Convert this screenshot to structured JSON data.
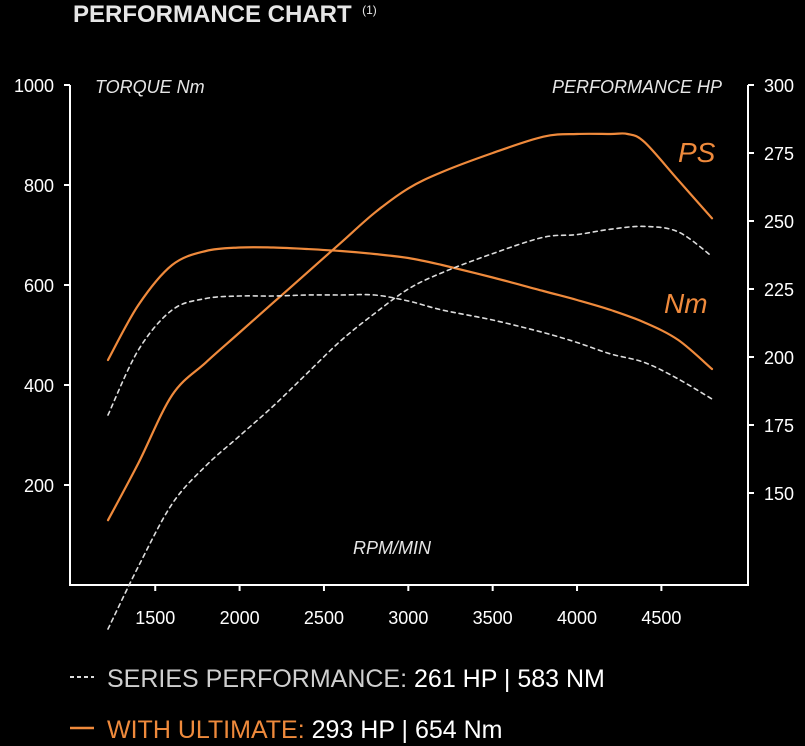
{
  "header": {
    "title": "PERFORMANCE CHART",
    "footnote": "(1)"
  },
  "colors": {
    "accent": "#ef8a3c",
    "series": "#dddddd",
    "background": "#000000",
    "axis": "#ffffff",
    "legend_label_series": "#cfcfcf"
  },
  "chart_data": {
    "type": "line",
    "xlabel": "RPM/MIN",
    "ylabel_left": "TORQUE Nm",
    "ylabel_right": "PERFORMANCE HP",
    "xlim": [
      1000,
      5000
    ],
    "ylim_left": [
      0,
      1000
    ],
    "ylim_right": [
      100,
      300
    ],
    "x_ticks": [
      1500,
      2000,
      2500,
      3000,
      3500,
      4000,
      4500
    ],
    "y_ticks_left": [
      200,
      400,
      600,
      800,
      1000
    ],
    "y_ticks_right": [
      150,
      175,
      200,
      225,
      250,
      275,
      300
    ],
    "grid": false,
    "tags": {
      "ps": "PS",
      "nm": "Nm"
    },
    "series": [
      {
        "axis": "right",
        "style": "solid",
        "tag": "ps",
        "x": [
          1220,
          1400,
          1600,
          1800,
          2000,
          2200,
          2400,
          2600,
          2800,
          3000,
          3200,
          3500,
          3800,
          4000,
          4200,
          4300,
          4400,
          4600,
          4800
        ],
        "y": [
          140,
          161,
          186,
          198,
          209,
          220,
          231,
          242,
          253,
          262,
          268,
          275,
          281,
          282,
          282,
          282,
          279,
          265,
          251
        ]
      },
      {
        "axis": "left",
        "style": "solid",
        "tag": "nm",
        "x": [
          1220,
          1400,
          1600,
          1800,
          2000,
          2200,
          2400,
          2600,
          2800,
          3000,
          3200,
          3500,
          3800,
          4000,
          4200,
          4400,
          4600,
          4800
        ],
        "y": [
          450,
          560,
          640,
          668,
          675,
          675,
          672,
          668,
          662,
          654,
          640,
          615,
          588,
          570,
          550,
          525,
          490,
          432
        ]
      },
      {
        "axis": "right",
        "style": "dashed",
        "x": [
          1220,
          1400,
          1600,
          1800,
          2000,
          2200,
          2400,
          2600,
          2800,
          3000,
          3200,
          3500,
          3800,
          4000,
          4200,
          4400,
          4600,
          4800
        ],
        "y": [
          100,
          123,
          146,
          160,
          171,
          182,
          194,
          206,
          216,
          225,
          231,
          238,
          244,
          245,
          247,
          248,
          246,
          237
        ]
      },
      {
        "axis": "left",
        "style": "dashed",
        "x": [
          1220,
          1400,
          1600,
          1800,
          2000,
          2200,
          2400,
          2600,
          2800,
          3000,
          3200,
          3500,
          3800,
          4000,
          4200,
          4400,
          4600,
          4800
        ],
        "y": [
          340,
          470,
          550,
          573,
          578,
          578,
          580,
          580,
          580,
          568,
          550,
          530,
          505,
          485,
          462,
          445,
          412,
          372
        ]
      }
    ]
  },
  "legend": {
    "series_label": "SERIES PERFORMANCE:",
    "series_values": " 261 HP | 583 NM",
    "ultimate_label": "WITH ULTIMATE:",
    "ultimate_values": " 293 HP | 654 Nm"
  }
}
